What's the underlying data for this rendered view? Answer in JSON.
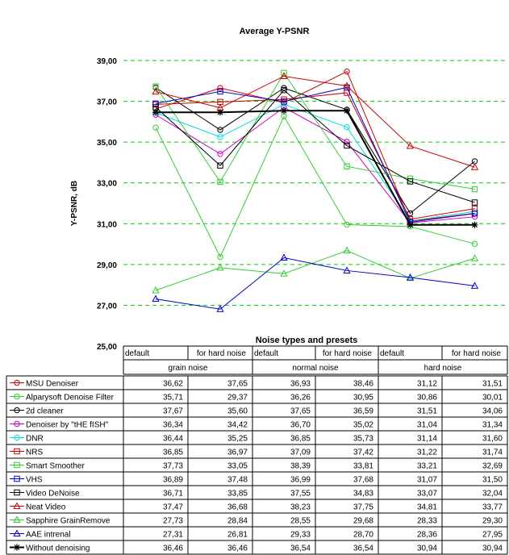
{
  "chart_data": {
    "type": "line",
    "title": "Average Y-PSNR",
    "ylabel": "Y-PSNR, dB",
    "xlabel": "Noise types and presets",
    "ylim": [
      25,
      39
    ],
    "yticks": [
      "25,00",
      "27,00",
      "29,00",
      "31,00",
      "33,00",
      "35,00",
      "37,00",
      "39,00"
    ],
    "grid": true,
    "presets": [
      "default",
      "for hard noise",
      "default",
      "for hard noise",
      "default",
      "for hard noise"
    ],
    "groups": [
      "grain noise",
      "normal noise",
      "hard noise"
    ],
    "series": [
      {
        "name": "MSU Denoiser",
        "color": "#cc0000",
        "marker": "circle",
        "labels": [
          "36,62",
          "37,65",
          "36,93",
          "38,46",
          "31,12",
          "31,51"
        ],
        "values": [
          36.62,
          37.65,
          36.93,
          38.46,
          31.12,
          31.51
        ]
      },
      {
        "name": "Alparysoft Denoise Filter",
        "color": "#33cc33",
        "marker": "circle",
        "labels": [
          "35,71",
          "29,37",
          "36,26",
          "30,95",
          "30,86",
          "30,01"
        ],
        "values": [
          35.71,
          29.37,
          36.26,
          30.95,
          30.86,
          30.01
        ]
      },
      {
        "name": "2d cleaner",
        "color": "#000000",
        "marker": "circle",
        "labels": [
          "37,67",
          "35,60",
          "37,65",
          "36,59",
          "31,51",
          "34,06"
        ],
        "values": [
          37.67,
          35.6,
          37.65,
          36.59,
          31.51,
          34.06
        ]
      },
      {
        "name": "Denoiser by \"tHE fISH\"",
        "color": "#cc00cc",
        "marker": "circle",
        "labels": [
          "36,34",
          "34,42",
          "36,70",
          "35,02",
          "31,04",
          "31,34"
        ],
        "values": [
          36.34,
          34.42,
          36.7,
          35.02,
          31.04,
          31.34
        ]
      },
      {
        "name": "DNR",
        "color": "#00dddd",
        "marker": "circle",
        "labels": [
          "36,44",
          "35,25",
          "36,85",
          "35,73",
          "31,14",
          "31,60"
        ],
        "values": [
          36.44,
          35.25,
          36.85,
          35.73,
          31.14,
          31.6
        ]
      },
      {
        "name": "NRS",
        "color": "#cc0000",
        "marker": "square",
        "labels": [
          "36,85",
          "36,97",
          "37,09",
          "37,42",
          "31,22",
          "31,74"
        ],
        "values": [
          36.85,
          36.97,
          37.09,
          37.42,
          31.22,
          31.74
        ]
      },
      {
        "name": "Smart Smoother",
        "color": "#33cc33",
        "marker": "square",
        "labels": [
          "37,73",
          "33,05",
          "38,39",
          "33,81",
          "33,21",
          "32,69"
        ],
        "values": [
          37.73,
          33.05,
          38.39,
          33.81,
          33.21,
          32.69
        ]
      },
      {
        "name": "VHS",
        "color": "#0000cc",
        "marker": "square",
        "labels": [
          "36,89",
          "37,48",
          "36,99",
          "37,68",
          "31,07",
          "31,50"
        ],
        "values": [
          36.89,
          37.48,
          36.99,
          37.68,
          31.07,
          31.5
        ]
      },
      {
        "name": "Video DeNoise",
        "color": "#000000",
        "marker": "square",
        "labels": [
          "36,71",
          "33,85",
          "37,55",
          "34,83",
          "33,07",
          "32,04"
        ],
        "values": [
          36.71,
          33.85,
          37.55,
          34.83,
          33.07,
          32.04
        ]
      },
      {
        "name": "Neat Video",
        "color": "#cc0000",
        "marker": "triangle",
        "labels": [
          "37,47",
          "36,68",
          "38,23",
          "37,75",
          "34,81",
          "33,77"
        ],
        "values": [
          37.47,
          36.68,
          38.23,
          37.75,
          34.81,
          33.77
        ]
      },
      {
        "name": "Sapphire GrainRemove",
        "color": "#33cc33",
        "marker": "triangle",
        "labels": [
          "27,73",
          "28,84",
          "28,55",
          "29,68",
          "28,33",
          "29,30"
        ],
        "values": [
          27.73,
          28.84,
          28.55,
          29.68,
          28.33,
          29.3
        ]
      },
      {
        "name": "AAE intrenal",
        "color": "#0000cc",
        "marker": "triangle",
        "labels": [
          "27,31",
          "26,81",
          "29,33",
          "28,70",
          "28,36",
          "27,95"
        ],
        "values": [
          27.31,
          26.81,
          29.33,
          28.7,
          28.36,
          27.95
        ]
      },
      {
        "name": "Without denoising",
        "color": "#000000",
        "marker": "star",
        "labels": [
          "36,46",
          "36,46",
          "36,54",
          "36,54",
          "30,94",
          "30,94"
        ],
        "values": [
          36.46,
          36.46,
          36.54,
          36.54,
          30.94,
          30.94
        ]
      }
    ]
  }
}
